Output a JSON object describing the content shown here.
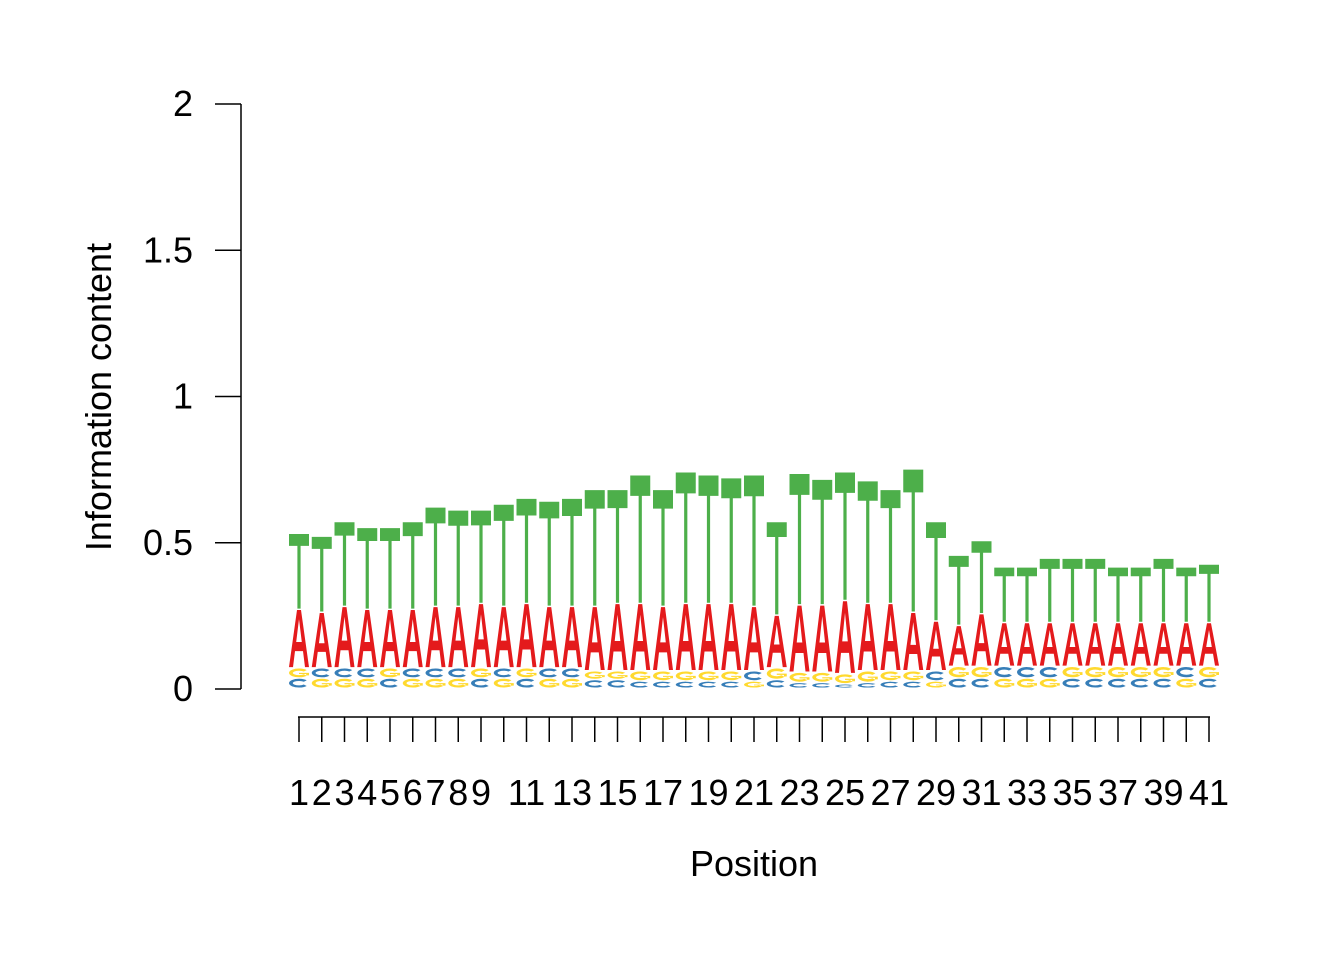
{
  "chart_data": {
    "type": "sequence-logo",
    "title": "",
    "xlabel": "Position",
    "ylabel": "Information content",
    "ylim": [
      0,
      2
    ],
    "yticks": [
      0,
      0.5,
      1,
      1.5,
      2
    ],
    "ytick_labels": [
      "0",
      "0.5",
      "1",
      "1.5",
      "2"
    ],
    "xtick_labels": [
      "1",
      "2",
      "3",
      "4",
      "5",
      "6",
      "7",
      "8",
      "9",
      "",
      "11",
      "",
      "13",
      "",
      "15",
      "",
      "17",
      "",
      "19",
      "",
      "21",
      "",
      "23",
      "",
      "25",
      "",
      "27",
      "",
      "29",
      "",
      "31",
      "",
      "33",
      "",
      "35",
      "",
      "37",
      "",
      "39",
      "",
      "41"
    ],
    "letter_colors": {
      "A": "#e41a1c",
      "C": "#377eb8",
      "G": "#ffd92f",
      "T": "#4daf4a"
    },
    "positions": [
      {
        "pos": 1,
        "stack": [
          [
            "C",
            0.035
          ],
          [
            "G",
            0.035
          ],
          [
            "A",
            0.2
          ],
          [
            "T",
            0.26
          ]
        ]
      },
      {
        "pos": 2,
        "stack": [
          [
            "G",
            0.035
          ],
          [
            "C",
            0.035
          ],
          [
            "A",
            0.19
          ],
          [
            "T",
            0.26
          ]
        ]
      },
      {
        "pos": 3,
        "stack": [
          [
            "G",
            0.035
          ],
          [
            "C",
            0.035
          ],
          [
            "A",
            0.21
          ],
          [
            "T",
            0.29
          ]
        ]
      },
      {
        "pos": 4,
        "stack": [
          [
            "G",
            0.035
          ],
          [
            "C",
            0.035
          ],
          [
            "A",
            0.2
          ],
          [
            "T",
            0.28
          ]
        ]
      },
      {
        "pos": 5,
        "stack": [
          [
            "C",
            0.035
          ],
          [
            "G",
            0.035
          ],
          [
            "A",
            0.2
          ],
          [
            "T",
            0.28
          ]
        ]
      },
      {
        "pos": 6,
        "stack": [
          [
            "G",
            0.035
          ],
          [
            "C",
            0.035
          ],
          [
            "A",
            0.2
          ],
          [
            "T",
            0.3
          ]
        ]
      },
      {
        "pos": 7,
        "stack": [
          [
            "G",
            0.035
          ],
          [
            "C",
            0.035
          ],
          [
            "A",
            0.21
          ],
          [
            "T",
            0.34
          ]
        ]
      },
      {
        "pos": 8,
        "stack": [
          [
            "G",
            0.035
          ],
          [
            "C",
            0.035
          ],
          [
            "A",
            0.21
          ],
          [
            "T",
            0.33
          ]
        ]
      },
      {
        "pos": 9,
        "stack": [
          [
            "C",
            0.035
          ],
          [
            "G",
            0.035
          ],
          [
            "A",
            0.22
          ],
          [
            "T",
            0.32
          ]
        ]
      },
      {
        "pos": 10,
        "stack": [
          [
            "G",
            0.035
          ],
          [
            "C",
            0.035
          ],
          [
            "A",
            0.21
          ],
          [
            "T",
            0.35
          ]
        ]
      },
      {
        "pos": 11,
        "stack": [
          [
            "C",
            0.035
          ],
          [
            "G",
            0.035
          ],
          [
            "A",
            0.22
          ],
          [
            "T",
            0.36
          ]
        ]
      },
      {
        "pos": 12,
        "stack": [
          [
            "G",
            0.035
          ],
          [
            "C",
            0.035
          ],
          [
            "A",
            0.21
          ],
          [
            "T",
            0.36
          ]
        ]
      },
      {
        "pos": 13,
        "stack": [
          [
            "G",
            0.035
          ],
          [
            "C",
            0.035
          ],
          [
            "A",
            0.21
          ],
          [
            "T",
            0.37
          ]
        ]
      },
      {
        "pos": 14,
        "stack": [
          [
            "C",
            0.03
          ],
          [
            "G",
            0.03
          ],
          [
            "A",
            0.22
          ],
          [
            "T",
            0.4
          ]
        ]
      },
      {
        "pos": 15,
        "stack": [
          [
            "C",
            0.03
          ],
          [
            "G",
            0.03
          ],
          [
            "A",
            0.23
          ],
          [
            "T",
            0.39
          ]
        ]
      },
      {
        "pos": 16,
        "stack": [
          [
            "C",
            0.025
          ],
          [
            "G",
            0.035
          ],
          [
            "A",
            0.23
          ],
          [
            "T",
            0.44
          ]
        ]
      },
      {
        "pos": 17,
        "stack": [
          [
            "C",
            0.025
          ],
          [
            "G",
            0.035
          ],
          [
            "A",
            0.22
          ],
          [
            "T",
            0.4
          ]
        ]
      },
      {
        "pos": 18,
        "stack": [
          [
            "C",
            0.025
          ],
          [
            "G",
            0.035
          ],
          [
            "A",
            0.23
          ],
          [
            "T",
            0.45
          ]
        ]
      },
      {
        "pos": 19,
        "stack": [
          [
            "C",
            0.025
          ],
          [
            "G",
            0.035
          ],
          [
            "A",
            0.23
          ],
          [
            "T",
            0.44
          ]
        ]
      },
      {
        "pos": 20,
        "stack": [
          [
            "C",
            0.025
          ],
          [
            "G",
            0.035
          ],
          [
            "A",
            0.23
          ],
          [
            "T",
            0.43
          ]
        ]
      },
      {
        "pos": 21,
        "stack": [
          [
            "G",
            0.025
          ],
          [
            "C",
            0.035
          ],
          [
            "A",
            0.22
          ],
          [
            "T",
            0.45
          ]
        ]
      },
      {
        "pos": 22,
        "stack": [
          [
            "C",
            0.03
          ],
          [
            "G",
            0.04
          ],
          [
            "A",
            0.18
          ],
          [
            "T",
            0.32
          ]
        ]
      },
      {
        "pos": 23,
        "stack": [
          [
            "C",
            0.02
          ],
          [
            "G",
            0.035
          ],
          [
            "A",
            0.23
          ],
          [
            "T",
            0.45
          ]
        ]
      },
      {
        "pos": 24,
        "stack": [
          [
            "C",
            0.02
          ],
          [
            "G",
            0.035
          ],
          [
            "A",
            0.23
          ],
          [
            "T",
            0.43
          ]
        ]
      },
      {
        "pos": 25,
        "stack": [
          [
            "C",
            0.015
          ],
          [
            "G",
            0.035
          ],
          [
            "A",
            0.25
          ],
          [
            "T",
            0.44
          ]
        ]
      },
      {
        "pos": 26,
        "stack": [
          [
            "C",
            0.02
          ],
          [
            "G",
            0.04
          ],
          [
            "A",
            0.23
          ],
          [
            "T",
            0.42
          ]
        ]
      },
      {
        "pos": 27,
        "stack": [
          [
            "C",
            0.025
          ],
          [
            "G",
            0.035
          ],
          [
            "A",
            0.23
          ],
          [
            "T",
            0.39
          ]
        ]
      },
      {
        "pos": 28,
        "stack": [
          [
            "C",
            0.025
          ],
          [
            "G",
            0.035
          ],
          [
            "A",
            0.2
          ],
          [
            "T",
            0.49
          ]
        ]
      },
      {
        "pos": 29,
        "stack": [
          [
            "G",
            0.025
          ],
          [
            "C",
            0.035
          ],
          [
            "A",
            0.17
          ],
          [
            "T",
            0.34
          ]
        ]
      },
      {
        "pos": 30,
        "stack": [
          [
            "C",
            0.035
          ],
          [
            "G",
            0.04
          ],
          [
            "A",
            0.14
          ],
          [
            "T",
            0.24
          ]
        ]
      },
      {
        "pos": 31,
        "stack": [
          [
            "C",
            0.035
          ],
          [
            "G",
            0.04
          ],
          [
            "A",
            0.18
          ],
          [
            "T",
            0.25
          ]
        ]
      },
      {
        "pos": 32,
        "stack": [
          [
            "G",
            0.035
          ],
          [
            "C",
            0.04
          ],
          [
            "A",
            0.15
          ],
          [
            "T",
            0.19
          ]
        ]
      },
      {
        "pos": 33,
        "stack": [
          [
            "G",
            0.035
          ],
          [
            "C",
            0.04
          ],
          [
            "A",
            0.15
          ],
          [
            "T",
            0.19
          ]
        ]
      },
      {
        "pos": 34,
        "stack": [
          [
            "G",
            0.035
          ],
          [
            "C",
            0.04
          ],
          [
            "A",
            0.15
          ],
          [
            "T",
            0.22
          ]
        ]
      },
      {
        "pos": 35,
        "stack": [
          [
            "C",
            0.035
          ],
          [
            "G",
            0.04
          ],
          [
            "A",
            0.15
          ],
          [
            "T",
            0.22
          ]
        ]
      },
      {
        "pos": 36,
        "stack": [
          [
            "C",
            0.035
          ],
          [
            "G",
            0.04
          ],
          [
            "A",
            0.15
          ],
          [
            "T",
            0.22
          ]
        ]
      },
      {
        "pos": 37,
        "stack": [
          [
            "C",
            0.035
          ],
          [
            "G",
            0.04
          ],
          [
            "A",
            0.15
          ],
          [
            "T",
            0.19
          ]
        ]
      },
      {
        "pos": 38,
        "stack": [
          [
            "C",
            0.035
          ],
          [
            "G",
            0.04
          ],
          [
            "A",
            0.15
          ],
          [
            "T",
            0.19
          ]
        ]
      },
      {
        "pos": 39,
        "stack": [
          [
            "C",
            0.035
          ],
          [
            "G",
            0.04
          ],
          [
            "A",
            0.15
          ],
          [
            "T",
            0.22
          ]
        ]
      },
      {
        "pos": 40,
        "stack": [
          [
            "G",
            0.035
          ],
          [
            "C",
            0.04
          ],
          [
            "A",
            0.15
          ],
          [
            "T",
            0.19
          ]
        ]
      },
      {
        "pos": 41,
        "stack": [
          [
            "C",
            0.035
          ],
          [
            "G",
            0.04
          ],
          [
            "A",
            0.15
          ],
          [
            "T",
            0.2
          ]
        ]
      }
    ]
  }
}
